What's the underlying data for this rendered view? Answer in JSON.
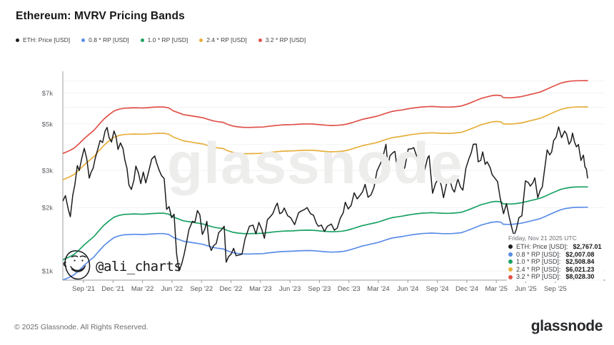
{
  "header": {
    "title": "Ethereum: MVRV Pricing Bands"
  },
  "legend": {
    "items": [
      {
        "label": "ETH: Price [USD]",
        "color": "price"
      },
      {
        "label": "0.8 * RP [USD]",
        "color": "band08"
      },
      {
        "label": "1.0 * RP [USD]",
        "color": "band10"
      },
      {
        "label": "2.4 * RP [USD]",
        "color": "band24"
      },
      {
        "label": "3.2 * RP [USD]",
        "color": "band32"
      }
    ]
  },
  "watermark": {
    "brand": "glassnode",
    "handle": "@ali_charts"
  },
  "tooltip": {
    "date": "Friday, Nov 21 2025 UTC",
    "rows": [
      {
        "label": "ETH: Price [USD]:",
        "value": "$2,767.01",
        "color": "price"
      },
      {
        "label": "0.8 * RP [USD]:",
        "value": "$2,007.08",
        "color": "band08"
      },
      {
        "label": "1.0 * RP [USD]:",
        "value": "$2,508.84",
        "color": "band10"
      },
      {
        "label": "2.4 * RP [USD]:",
        "value": "$6,021.23",
        "color": "band24"
      },
      {
        "label": "3.2 * RP [USD]:",
        "value": "$8,028.30",
        "color": "band32"
      }
    ]
  },
  "footer": {
    "copyright": "© 2025 Glassnode. All Rights Reserved.",
    "brand": "glassnode"
  },
  "chart_data": {
    "type": "line",
    "title": "Ethereum: MVRV Pricing Bands",
    "y_scale": "log",
    "y_unit": "USD",
    "x_unit": "months since Sep 2021",
    "legend_position": "top-left",
    "grid": "horizontal-only",
    "axes": {
      "x": {
        "labels": [
          "Sep '21",
          "Dec '21",
          "Mar '22",
          "Jun '22",
          "Sep '22",
          "Dec '22",
          "Mar '23",
          "Jun '23",
          "Sep '23",
          "Dec '23",
          "Mar '24",
          "Jun '24",
          "Sep '24",
          "Dec '24",
          "Mar '25",
          "Jun '25",
          "Sep '25"
        ]
      },
      "y": {
        "ticks": [
          {
            "value": 1000,
            "label": "$1k"
          },
          {
            "value": 2000,
            "label": "$2k"
          },
          {
            "value": 3000,
            "label": "$3k"
          },
          {
            "value": 5000,
            "label": "$5k"
          },
          {
            "value": 7000,
            "label": "$7k"
          }
        ],
        "grid_values": [
          1000,
          2000,
          3000,
          4000,
          5000,
          6000,
          7000,
          8000
        ],
        "range_usd": [
          900,
          8900
        ]
      }
    },
    "colors": {
      "price": "#1c1d1f",
      "band08": "#5b8de8",
      "band10": "#1aa263",
      "band24": "#e7af3b",
      "band32": "#e0524a",
      "grid": "#f2f2f2",
      "axis": "#9d9d9d",
      "watermark": "#ededec"
    },
    "bands": [
      {
        "name": "3.2 * RP [USD]",
        "multiplier": 3.2,
        "color": "band32",
        "last_value": 8028.3
      },
      {
        "name": "2.4 * RP [USD]",
        "multiplier": 2.4,
        "color": "band24",
        "last_value": 6021.23
      },
      {
        "name": "1.0 * RP [USD]",
        "multiplier": 1.0,
        "color": "band10",
        "last_value": 2508.84
      },
      {
        "name": "0.8 * RP [USD]",
        "multiplier": 0.8,
        "color": "band08",
        "last_value": 2007.08
      }
    ],
    "series_rp": {
      "name": "Realized Price (1.0 * RP [USD])",
      "points": [
        [
          -2.15,
          1130
        ],
        [
          -1.5,
          1165
        ],
        [
          -1.0,
          1200
        ],
        [
          -0.5,
          1260
        ],
        [
          0,
          1330
        ],
        [
          0.5,
          1395
        ],
        [
          1,
          1460
        ],
        [
          1.5,
          1555
        ],
        [
          2,
          1650
        ],
        [
          2.5,
          1730
        ],
        [
          3,
          1800
        ],
        [
          3.5,
          1835
        ],
        [
          4,
          1855
        ],
        [
          4.5,
          1860
        ],
        [
          5,
          1865
        ],
        [
          5.5,
          1862
        ],
        [
          6,
          1860
        ],
        [
          6.5,
          1868
        ],
        [
          7,
          1875
        ],
        [
          7.5,
          1880
        ],
        [
          8,
          1880
        ],
        [
          8.5,
          1862
        ],
        [
          9,
          1800
        ],
        [
          9.5,
          1765
        ],
        [
          10,
          1730
        ],
        [
          10.5,
          1715
        ],
        [
          11,
          1700
        ],
        [
          11.5,
          1685
        ],
        [
          12,
          1670
        ],
        [
          12.5,
          1640
        ],
        [
          13,
          1615
        ],
        [
          13.5,
          1600
        ],
        [
          14,
          1590
        ],
        [
          14.35,
          1560
        ],
        [
          15,
          1525
        ],
        [
          15.5,
          1512
        ],
        [
          16,
          1505
        ],
        [
          16.5,
          1503
        ],
        [
          17,
          1505
        ],
        [
          17.5,
          1507
        ],
        [
          18,
          1510
        ],
        [
          18.5,
          1520
        ],
        [
          19,
          1530
        ],
        [
          19.5,
          1538
        ],
        [
          20,
          1545
        ],
        [
          20.5,
          1548
        ],
        [
          21,
          1550
        ],
        [
          21.5,
          1555
        ],
        [
          22,
          1560
        ],
        [
          22.5,
          1562
        ],
        [
          23,
          1560
        ],
        [
          23.5,
          1553
        ],
        [
          24,
          1545
        ],
        [
          24.5,
          1538
        ],
        [
          25,
          1535
        ],
        [
          25.5,
          1538
        ],
        [
          26,
          1545
        ],
        [
          26.5,
          1560
        ],
        [
          27,
          1585
        ],
        [
          27.5,
          1612
        ],
        [
          28,
          1640
        ],
        [
          28.5,
          1660
        ],
        [
          29,
          1680
        ],
        [
          29.5,
          1700
        ],
        [
          30,
          1730
        ],
        [
          30.5,
          1762
        ],
        [
          31,
          1790
        ],
        [
          31.5,
          1806
        ],
        [
          32,
          1820
        ],
        [
          32.5,
          1838
        ],
        [
          33,
          1855
        ],
        [
          33.5,
          1868
        ],
        [
          34,
          1880
        ],
        [
          34.5,
          1886
        ],
        [
          35,
          1890
        ],
        [
          35.5,
          1886
        ],
        [
          36,
          1880
        ],
        [
          36.5,
          1878
        ],
        [
          37,
          1880
        ],
        [
          37.5,
          1888
        ],
        [
          38,
          1900
        ],
        [
          38.5,
          1935
        ],
        [
          39,
          1975
        ],
        [
          39.5,
          2020
        ],
        [
          40,
          2065
        ],
        [
          40.5,
          2095
        ],
        [
          41,
          2125
        ],
        [
          41.5,
          2140
        ],
        [
          42,
          2130
        ],
        [
          42.2,
          2085
        ],
        [
          42.6,
          2080
        ],
        [
          43,
          2080
        ],
        [
          43.5,
          2090
        ],
        [
          44,
          2105
        ],
        [
          44.5,
          2130
        ],
        [
          45,
          2160
        ],
        [
          45.5,
          2188
        ],
        [
          46,
          2220
        ],
        [
          46.5,
          2272
        ],
        [
          47,
          2330
        ],
        [
          47.5,
          2385
        ],
        [
          48,
          2440
        ],
        [
          48.5,
          2472
        ],
        [
          49,
          2495
        ],
        [
          49.5,
          2505
        ],
        [
          50,
          2508
        ],
        [
          50.72,
          2508.84
        ]
      ]
    },
    "series_price": {
      "name": "ETH: Price [USD]",
      "last_value": 2767.01,
      "points": [
        [
          -2.15,
          2150
        ],
        [
          -1.9,
          2280
        ],
        [
          -1.6,
          1950
        ],
        [
          -1.4,
          1810
        ],
        [
          -1.15,
          2300
        ],
        [
          -0.95,
          2560
        ],
        [
          -0.7,
          3170
        ],
        [
          -0.5,
          3000
        ],
        [
          -0.25,
          3430
        ],
        [
          0.0,
          3830
        ],
        [
          0.25,
          3420
        ],
        [
          0.5,
          2760
        ],
        [
          0.7,
          2950
        ],
        [
          0.9,
          3080
        ],
        [
          1.1,
          3420
        ],
        [
          1.4,
          3850
        ],
        [
          1.6,
          4170
        ],
        [
          1.85,
          4080
        ],
        [
          2.1,
          4620
        ],
        [
          2.3,
          4810
        ],
        [
          2.5,
          4300
        ],
        [
          2.75,
          4100
        ],
        [
          3.0,
          4630
        ],
        [
          3.2,
          4350
        ],
        [
          3.4,
          3780
        ],
        [
          3.65,
          4060
        ],
        [
          3.9,
          3830
        ],
        [
          4.1,
          3350
        ],
        [
          4.3,
          3080
        ],
        [
          4.5,
          2560
        ],
        [
          4.75,
          2440
        ],
        [
          5.0,
          2690
        ],
        [
          5.2,
          3150
        ],
        [
          5.45,
          2930
        ],
        [
          5.7,
          2600
        ],
        [
          5.95,
          2950
        ],
        [
          6.2,
          2620
        ],
        [
          6.5,
          2980
        ],
        [
          6.8,
          3400
        ],
        [
          7.1,
          3520
        ],
        [
          7.3,
          3250
        ],
        [
          7.55,
          3010
        ],
        [
          7.8,
          2830
        ],
        [
          8.05,
          2750
        ],
        [
          8.3,
          1960
        ],
        [
          8.55,
          2020
        ],
        [
          8.8,
          1790
        ],
        [
          9.05,
          1860
        ],
        [
          9.3,
          1210
        ],
        [
          9.55,
          1000
        ],
        [
          9.8,
          1070
        ],
        [
          10.05,
          1190
        ],
        [
          10.3,
          1360
        ],
        [
          10.55,
          1570
        ],
        [
          10.9,
          1720
        ],
        [
          11.15,
          1700
        ],
        [
          11.4,
          1935
        ],
        [
          11.65,
          1850
        ],
        [
          11.9,
          1490
        ],
        [
          12.15,
          1580
        ],
        [
          12.35,
          1720
        ],
        [
          12.6,
          1330
        ],
        [
          12.8,
          1250
        ],
        [
          13.05,
          1320
        ],
        [
          13.3,
          1350
        ],
        [
          13.55,
          1520
        ],
        [
          13.8,
          1560
        ],
        [
          14.1,
          1630
        ],
        [
          14.3,
          1100
        ],
        [
          14.55,
          1170
        ],
        [
          14.8,
          1200
        ],
        [
          15.05,
          1280
        ],
        [
          15.3,
          1180
        ],
        [
          15.6,
          1190
        ],
        [
          15.9,
          1200
        ],
        [
          16.2,
          1420
        ],
        [
          16.65,
          1630
        ],
        [
          17.0,
          1650
        ],
        [
          17.3,
          1500
        ],
        [
          17.6,
          1700
        ],
        [
          17.9,
          1570
        ],
        [
          18.15,
          1430
        ],
        [
          18.45,
          1750
        ],
        [
          18.7,
          1800
        ],
        [
          19.0,
          1870
        ],
        [
          19.25,
          2010
        ],
        [
          19.45,
          2100
        ],
        [
          19.7,
          1870
        ],
        [
          19.95,
          1900
        ],
        [
          20.15,
          1990
        ],
        [
          20.5,
          1830
        ],
        [
          20.8,
          1790
        ],
        [
          21.2,
          1660
        ],
        [
          21.6,
          1890
        ],
        [
          21.9,
          1930
        ],
        [
          22.2,
          1960
        ],
        [
          22.45,
          2000
        ],
        [
          22.8,
          1870
        ],
        [
          23.1,
          1840
        ],
        [
          23.4,
          1680
        ],
        [
          23.6,
          1630
        ],
        [
          23.9,
          1650
        ],
        [
          24.2,
          1540
        ],
        [
          24.5,
          1630
        ],
        [
          24.9,
          1670
        ],
        [
          25.2,
          1560
        ],
        [
          25.5,
          1600
        ],
        [
          25.8,
          1780
        ],
        [
          26.1,
          1890
        ],
        [
          26.3,
          2120
        ],
        [
          26.6,
          1970
        ],
        [
          26.9,
          2050
        ],
        [
          27.2,
          2350
        ],
        [
          27.5,
          2200
        ],
        [
          27.8,
          2290
        ],
        [
          28.05,
          2380
        ],
        [
          28.3,
          2580
        ],
        [
          28.6,
          2240
        ],
        [
          28.9,
          2300
        ],
        [
          29.2,
          2500
        ],
        [
          29.5,
          2980
        ],
        [
          29.85,
          3240
        ],
        [
          30.1,
          3490
        ],
        [
          30.4,
          4000
        ],
        [
          30.6,
          3160
        ],
        [
          30.8,
          3520
        ],
        [
          31.1,
          3650
        ],
        [
          31.3,
          3700
        ],
        [
          31.55,
          3060
        ],
        [
          31.8,
          3220
        ],
        [
          32.0,
          2970
        ],
        [
          32.3,
          3100
        ],
        [
          32.65,
          3790
        ],
        [
          33.0,
          3810
        ],
        [
          33.2,
          3860
        ],
        [
          33.5,
          3500
        ],
        [
          33.8,
          3350
        ],
        [
          34.1,
          3060
        ],
        [
          34.3,
          3020
        ],
        [
          34.6,
          3440
        ],
        [
          34.75,
          3530
        ],
        [
          35.1,
          2340
        ],
        [
          35.4,
          2610
        ],
        [
          35.75,
          2770
        ],
        [
          36.0,
          2520
        ],
        [
          36.2,
          2230
        ],
        [
          36.5,
          2590
        ],
        [
          36.85,
          2690
        ],
        [
          37.1,
          2450
        ],
        [
          37.3,
          2370
        ],
        [
          37.65,
          2740
        ],
        [
          37.9,
          2510
        ],
        [
          38.15,
          2420
        ],
        [
          38.45,
          3070
        ],
        [
          38.75,
          3400
        ],
        [
          39.0,
          3650
        ],
        [
          39.2,
          4000
        ],
        [
          39.5,
          4010
        ],
        [
          39.7,
          3300
        ],
        [
          39.95,
          3350
        ],
        [
          40.15,
          3680
        ],
        [
          40.4,
          3210
        ],
        [
          40.6,
          3300
        ],
        [
          40.9,
          3100
        ],
        [
          41.1,
          2870
        ],
        [
          41.4,
          2750
        ],
        [
          41.65,
          2660
        ],
        [
          41.9,
          2240
        ],
        [
          42.25,
          1870
        ],
        [
          42.55,
          2090
        ],
        [
          42.8,
          1820
        ],
        [
          43.1,
          1590
        ],
        [
          43.3,
          1470
        ],
        [
          43.55,
          1580
        ],
        [
          43.8,
          1790
        ],
        [
          44.1,
          1830
        ],
        [
          44.45,
          2680
        ],
        [
          44.75,
          2630
        ],
        [
          44.95,
          2530
        ],
        [
          45.2,
          2620
        ],
        [
          45.4,
          2770
        ],
        [
          45.7,
          2230
        ],
        [
          45.95,
          2420
        ],
        [
          46.15,
          2500
        ],
        [
          46.35,
          2950
        ],
        [
          46.65,
          3760
        ],
        [
          46.9,
          3560
        ],
        [
          47.1,
          3680
        ],
        [
          47.3,
          4170
        ],
        [
          47.55,
          4320
        ],
        [
          47.8,
          4840
        ],
        [
          48.1,
          4300
        ],
        [
          48.4,
          4620
        ],
        [
          48.6,
          4480
        ],
        [
          48.85,
          4000
        ],
        [
          49.05,
          4150
        ],
        [
          49.2,
          4520
        ],
        [
          49.4,
          4100
        ],
        [
          49.6,
          3890
        ],
        [
          49.8,
          3990
        ],
        [
          50.05,
          3350
        ],
        [
          50.3,
          3550
        ],
        [
          50.45,
          3120
        ],
        [
          50.6,
          3050
        ],
        [
          50.72,
          2767.01
        ]
      ]
    }
  }
}
